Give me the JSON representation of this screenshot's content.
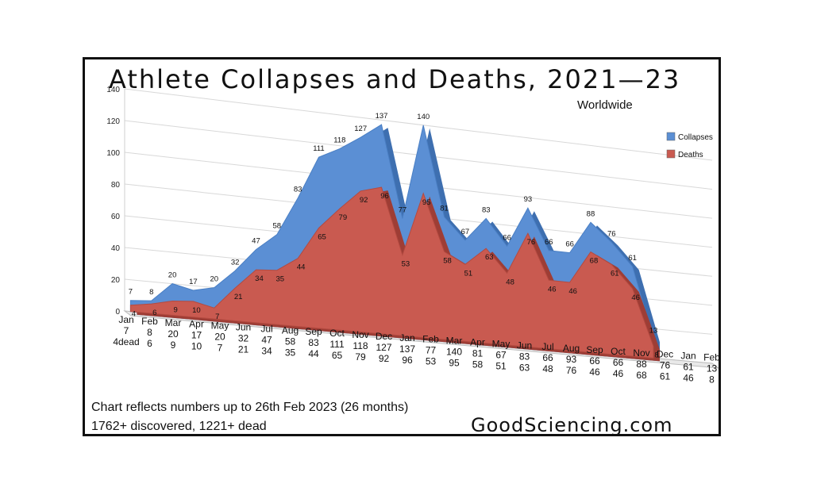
{
  "chart_data": {
    "type": "area",
    "title": "Athlete Collapses and Deaths, 2021—23",
    "subtitle": "Worldwide",
    "categories": [
      "Jan",
      "Feb",
      "Mar",
      "Apr",
      "May",
      "Jun",
      "Jul",
      "Aug",
      "Sep",
      "Oct",
      "Nov",
      "Dec",
      "Jan",
      "Feb",
      "Mar",
      "Apr",
      "May",
      "Jun",
      "Jul",
      "Aug",
      "Sep",
      "Oct",
      "Nov",
      "Dec",
      "Jan",
      "Feb"
    ],
    "series": [
      {
        "name": "Collapses",
        "color": "#5b8fd4",
        "values": [
          7,
          8,
          20,
          17,
          20,
          32,
          47,
          58,
          83,
          111,
          118,
          127,
          137,
          77,
          140,
          81,
          67,
          83,
          66,
          93,
          66,
          66,
          88,
          76,
          61,
          13
        ]
      },
      {
        "name": "Deaths",
        "color": "#c95a50",
        "values": [
          4,
          6,
          9,
          10,
          7,
          21,
          34,
          35,
          44,
          65,
          79,
          92,
          96,
          53,
          95,
          58,
          51,
          63,
          48,
          76,
          46,
          46,
          68,
          61,
          46,
          8
        ]
      }
    ],
    "category_labels_death": [
      "4dead",
      "6",
      "9",
      "10",
      "7",
      "21",
      "34",
      "35",
      "44",
      "65",
      "79",
      "92",
      "96",
      "53",
      "95",
      "58",
      "51",
      "63",
      "48",
      "76",
      "46",
      "46",
      "68",
      "61",
      "46",
      "8"
    ],
    "yticks": [
      "0",
      "20",
      "40",
      "60",
      "80",
      "100",
      "120",
      "140"
    ],
    "ylim": [
      0,
      140
    ],
    "legend": "right",
    "grid": true
  },
  "notes": {
    "line1": "Chart reflects numbers up to 26th Feb 2023 (26 months)",
    "line2": "1762+ discovered, 1221+ dead",
    "brand": "GoodSciencing.com"
  }
}
